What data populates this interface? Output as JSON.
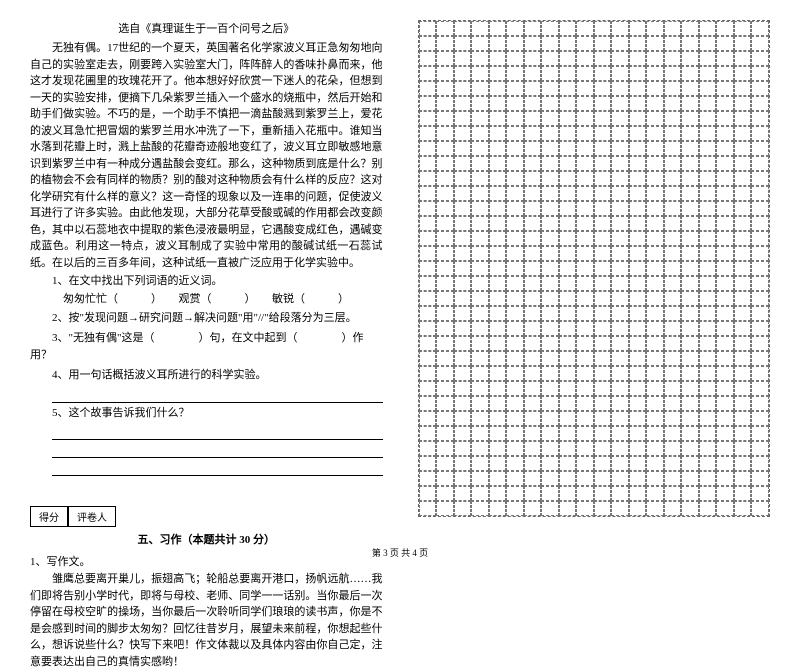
{
  "source": "选自《真理诞生于一百个问号之后》",
  "passage": "无独有偶。17世纪的一个夏天，英国著名化学家波义耳正急匆匆地向自己的实验室走去，刚要跨入实验室大门，阵阵醉人的香味扑鼻而来，他这才发现花圃里的玫瑰花开了。他本想好好欣赏一下迷人的花朵，但想到一天的实验安排，便摘下几朵紫罗兰插入一个盛水的烧瓶中，然后开始和助手们做实验。不巧的是，一个助手不慎把一滴盐酸溅到紫罗兰上，爱花的波义耳急忙把冒烟的紫罗兰用水冲洗了一下，重新插入花瓶中。谁知当水落到花瓣上时，溅上盐酸的花瓣奇迹般地变红了，波义耳立即敏感地意识到紫罗兰中有一种成分遇盐酸会变红。那么，这种物质到底是什么？别的植物会不会有同样的物质？别的酸对这种物质会有什么样的反应？这对化学研究有什么样的意义？这一奇怪的现象以及一连串的问题，促使波义耳进行了许多实验。由此他发现，大部分花草受酸或碱的作用都会改变颜色，其中以石蕊地衣中提取的紫色浸液最明显，它遇酸变成红色，遇碱变成蓝色。利用这一特点，波义耳制成了实验中常用的酸碱试纸一石蕊试纸。在以后的三百多年间，这种试纸一直被广泛应用于化学实验中。",
  "questions": {
    "q1": "1、在文中找出下列词语的近义词。",
    "q1_items": "匆匆忙忙（　　　）　　观赏（　　　）　　敏锐（　　　）",
    "q2": "2、按\"发现问题→研究问题→解决问题\"用\"//\"给段落分为三层。",
    "q3": "3、\"无独有偶\"这是（　　　　）句，在文中起到（　　　　）作用？",
    "q4": "4、用一句话概括波义耳所进行的科学实验。",
    "q5": "5、这个故事告诉我们什么？"
  },
  "score": {
    "label1": "得分",
    "label2": "评卷人"
  },
  "section5": "五、习作（本题共计 30 分）",
  "writing": {
    "label": "1、写作文。",
    "prompt": "雏鹰总要离开巢儿，振翅高飞；轮船总要离开港口，扬帆远航……我们即将告别小学时代，即将与母校、老师、同学一一话别。当你最后一次停留在母校空旷的操场，当你最后一次聆听同学们琅琅的读书声，你是不是会感到时间的脚步太匆匆？回忆往昔岁月，展望未来前程，你想起些什么，想诉说些什么？快写下来吧！作文体裁以及具体内容由你自己定，注意要表达出自己的真情实感哟！"
  },
  "footer": "第 3 页 共 4 页",
  "grid": {
    "rows": 33,
    "cols": 20
  }
}
